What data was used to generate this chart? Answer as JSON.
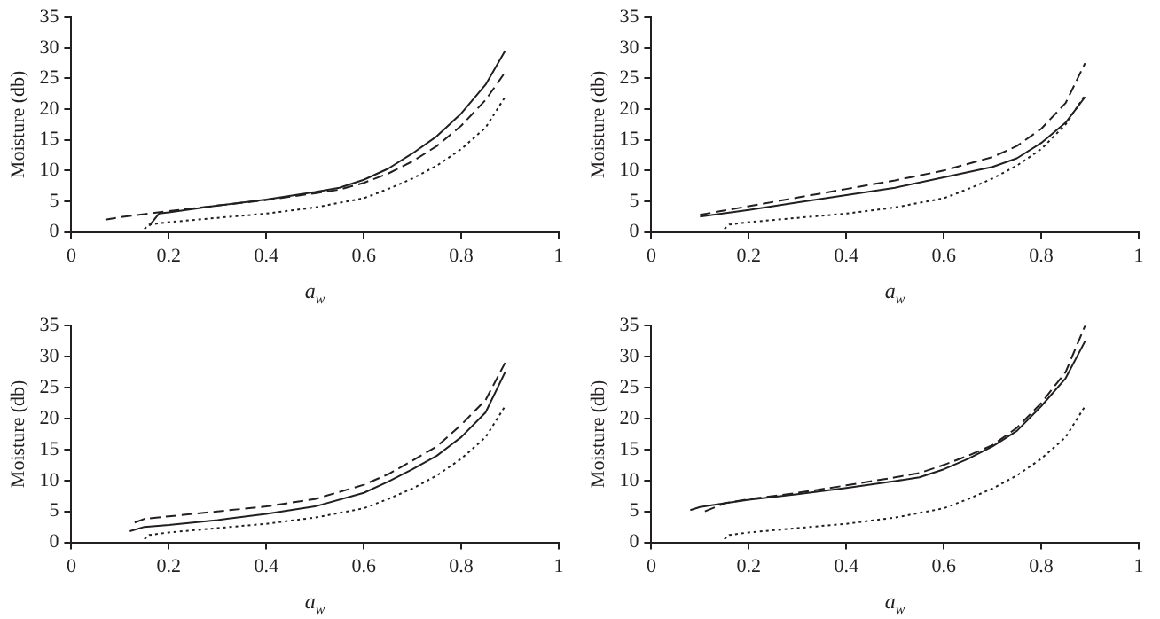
{
  "chart_data": [
    {
      "type": "line",
      "xlabel": "a$_{w}$",
      "ylabel": "Moisture (db)",
      "xlim": [
        0,
        1
      ],
      "xticks": [
        0,
        0.2,
        0.4,
        0.6,
        0.8,
        1
      ],
      "ylim": [
        0,
        35
      ],
      "yticks": [
        0,
        5,
        10,
        15,
        20,
        25,
        30,
        35
      ],
      "grid": false,
      "legend": false,
      "marker": "none",
      "series": [
        {
          "color": "#231f20",
          "line_style": "solid",
          "x": [
            0.16,
            0.18,
            0.2,
            0.3,
            0.4,
            0.5,
            0.55,
            0.6,
            0.65,
            0.7,
            0.75,
            0.8,
            0.85,
            0.89
          ],
          "values": [
            1,
            3,
            3.2,
            4.3,
            5.3,
            6.5,
            7.2,
            8.5,
            10.3,
            12.8,
            15.6,
            19.3,
            24,
            29.5
          ]
        },
        {
          "color": "#231f20",
          "line_style": "dashed",
          "x": [
            0.07,
            0.1,
            0.15,
            0.2,
            0.3,
            0.4,
            0.5,
            0.55,
            0.6,
            0.65,
            0.7,
            0.75,
            0.8,
            0.85,
            0.89
          ],
          "values": [
            2,
            2.4,
            2.9,
            3.4,
            4.3,
            5.2,
            6.3,
            6.9,
            8,
            9.5,
            11.5,
            14,
            17.3,
            21.5,
            26
          ]
        },
        {
          "color": "#231f20",
          "line_style": "dotted",
          "x": [
            0.15,
            0.16,
            0.2,
            0.3,
            0.4,
            0.5,
            0.6,
            0.65,
            0.7,
            0.75,
            0.8,
            0.85,
            0.89
          ],
          "values": [
            0.5,
            1.2,
            1.6,
            2.3,
            3,
            4,
            5.5,
            7,
            8.7,
            10.8,
            13.5,
            17,
            22
          ]
        }
      ]
    },
    {
      "type": "line",
      "xlabel": "a$_{w}$",
      "ylabel": "Moisture (db)",
      "xlim": [
        0,
        1
      ],
      "xticks": [
        0,
        0.2,
        0.4,
        0.6,
        0.8,
        1
      ],
      "ylim": [
        0,
        35
      ],
      "yticks": [
        0,
        5,
        10,
        15,
        20,
        25,
        30,
        35
      ],
      "grid": false,
      "legend": false,
      "marker": "none",
      "series": [
        {
          "color": "#231f20",
          "line_style": "solid",
          "x": [
            0.1,
            0.2,
            0.3,
            0.4,
            0.5,
            0.6,
            0.7,
            0.75,
            0.8,
            0.85,
            0.89
          ],
          "values": [
            2.5,
            3.6,
            4.8,
            6,
            7.2,
            8.9,
            10.6,
            12,
            14.5,
            17.8,
            22
          ]
        },
        {
          "color": "#231f20",
          "line_style": "dashed",
          "x": [
            0.1,
            0.2,
            0.3,
            0.4,
            0.5,
            0.6,
            0.7,
            0.75,
            0.8,
            0.85,
            0.89
          ],
          "values": [
            2.8,
            4.2,
            5.6,
            7,
            8.4,
            10,
            12.2,
            14,
            16.8,
            21,
            27.5
          ]
        },
        {
          "color": "#231f20",
          "line_style": "dotted",
          "x": [
            0.15,
            0.16,
            0.2,
            0.3,
            0.4,
            0.5,
            0.6,
            0.65,
            0.7,
            0.75,
            0.8,
            0.85,
            0.89
          ],
          "values": [
            0.5,
            1.2,
            1.6,
            2.3,
            3,
            4,
            5.5,
            7,
            8.7,
            10.8,
            13.5,
            17.5,
            22.3
          ]
        }
      ]
    },
    {
      "type": "line",
      "xlabel": "a$_{w}$",
      "ylabel": "Moisture (db)",
      "xlim": [
        0,
        1
      ],
      "xticks": [
        0,
        0.2,
        0.4,
        0.6,
        0.8,
        1
      ],
      "ylim": [
        0,
        35
      ],
      "yticks": [
        0,
        5,
        10,
        15,
        20,
        25,
        30,
        35
      ],
      "grid": false,
      "legend": false,
      "marker": "none",
      "series": [
        {
          "color": "#231f20",
          "line_style": "solid",
          "x": [
            0.12,
            0.15,
            0.2,
            0.3,
            0.4,
            0.5,
            0.6,
            0.65,
            0.7,
            0.75,
            0.8,
            0.85,
            0.89
          ],
          "values": [
            1.8,
            2.5,
            2.8,
            3.6,
            4.6,
            5.8,
            8,
            9.8,
            11.8,
            14,
            17,
            21,
            27.5
          ]
        },
        {
          "color": "#231f20",
          "line_style": "dashed",
          "x": [
            0.13,
            0.15,
            0.2,
            0.3,
            0.4,
            0.5,
            0.6,
            0.65,
            0.7,
            0.75,
            0.8,
            0.85,
            0.89
          ],
          "values": [
            3.2,
            3.8,
            4.2,
            5,
            5.8,
            7,
            9.3,
            11,
            13.2,
            15.5,
            19,
            23,
            29
          ]
        },
        {
          "color": "#231f20",
          "line_style": "dotted",
          "x": [
            0.15,
            0.16,
            0.2,
            0.3,
            0.4,
            0.5,
            0.6,
            0.65,
            0.7,
            0.75,
            0.8,
            0.85,
            0.89
          ],
          "values": [
            0.5,
            1.2,
            1.6,
            2.3,
            3,
            4,
            5.5,
            7,
            8.7,
            10.8,
            13.5,
            17,
            22
          ]
        }
      ]
    },
    {
      "type": "line",
      "xlabel": "a$_{w}$",
      "ylabel": "Moisture (db)",
      "xlim": [
        0,
        1
      ],
      "xticks": [
        0,
        0.2,
        0.4,
        0.6,
        0.8,
        1
      ],
      "ylim": [
        0,
        35
      ],
      "yticks": [
        0,
        5,
        10,
        15,
        20,
        25,
        30,
        35
      ],
      "grid": false,
      "legend": false,
      "marker": "none",
      "series": [
        {
          "color": "#231f20",
          "line_style": "solid",
          "x": [
            0.08,
            0.1,
            0.15,
            0.2,
            0.3,
            0.4,
            0.5,
            0.55,
            0.6,
            0.65,
            0.7,
            0.75,
            0.8,
            0.85,
            0.89
          ],
          "values": [
            5.2,
            5.7,
            6.3,
            6.9,
            7.8,
            8.8,
            9.9,
            10.5,
            11.8,
            13.5,
            15.5,
            18,
            22,
            26.5,
            32.5
          ]
        },
        {
          "color": "#231f20",
          "line_style": "dashed",
          "x": [
            0.11,
            0.15,
            0.2,
            0.3,
            0.4,
            0.5,
            0.55,
            0.6,
            0.65,
            0.7,
            0.75,
            0.8,
            0.85,
            0.89
          ],
          "values": [
            5,
            6.3,
            7,
            8,
            9.2,
            10.5,
            11.2,
            12.5,
            14,
            15.7,
            18.5,
            22.5,
            27.5,
            35
          ]
        },
        {
          "color": "#231f20",
          "line_style": "dotted",
          "x": [
            0.15,
            0.16,
            0.2,
            0.3,
            0.4,
            0.5,
            0.6,
            0.65,
            0.7,
            0.75,
            0.8,
            0.85,
            0.89
          ],
          "values": [
            0.5,
            1.2,
            1.6,
            2.3,
            3,
            4,
            5.5,
            7,
            8.7,
            10.8,
            13.5,
            17,
            22
          ]
        }
      ]
    }
  ]
}
